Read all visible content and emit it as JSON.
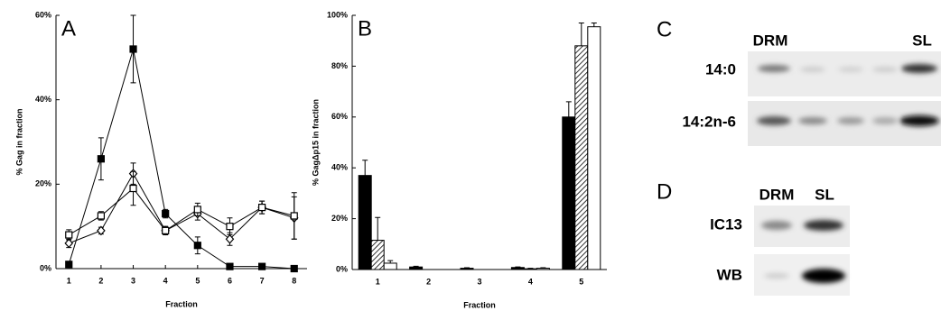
{
  "chart_data": [
    {
      "type": "line",
      "panel_label": "A",
      "y_label": "% Gag in fraction",
      "x_label": "Fraction",
      "x": [
        1,
        2,
        3,
        4,
        5,
        6,
        7,
        8
      ],
      "xlim": [
        0.6,
        8.4
      ],
      "xticks": [
        1,
        2,
        3,
        4,
        5,
        6,
        7,
        8
      ],
      "ylim": [
        0,
        60
      ],
      "yticks": [
        {
          "value": 0,
          "label": "0%"
        },
        {
          "value": 20,
          "label": "20%"
        },
        {
          "value": 40,
          "label": "40%"
        },
        {
          "value": 60,
          "label": "60%"
        }
      ],
      "series": [
        {
          "color": "#000000",
          "marker": "square-filled",
          "values": [
            1,
            26,
            52,
            13,
            5.5,
            0.5,
            0.5,
            0
          ],
          "errors": [
            0.5,
            5,
            8,
            1,
            2,
            0.3,
            0.3,
            0.2
          ]
        },
        {
          "color": "#000000",
          "marker": "diamond-open",
          "values": [
            6,
            9,
            22.5,
            9,
            13,
            7,
            14.5,
            12
          ],
          "errors": [
            1,
            0.8,
            2.5,
            0.8,
            1.5,
            1.5,
            1.5,
            5
          ]
        },
        {
          "color": "#000000",
          "marker": "square-open",
          "values": [
            8,
            12.5,
            19,
            9,
            14,
            10,
            14.5,
            12.5
          ],
          "errors": [
            1.2,
            1,
            4,
            1,
            1.5,
            2,
            1.5,
            5.5
          ]
        }
      ]
    },
    {
      "type": "bar",
      "panel_label": "B",
      "y_label": "% GagΔp15 in fraction",
      "x_label": "Fraction",
      "categories": [
        "1",
        "2",
        "3",
        "4",
        "5"
      ],
      "ylim": [
        0,
        100
      ],
      "yticks": [
        {
          "value": 0,
          "label": "0%"
        },
        {
          "value": 20,
          "label": "20%"
        },
        {
          "value": 40,
          "label": "40%"
        },
        {
          "value": 60,
          "label": "60%"
        },
        {
          "value": 80,
          "label": "80%"
        },
        {
          "value": 100,
          "label": "100%"
        }
      ],
      "series": [
        {
          "color": "#000000",
          "hatched": false,
          "values": [
            37,
            1,
            0.5,
            0.8,
            60
          ],
          "errors": [
            6,
            0.3,
            0.2,
            0.2,
            6
          ]
        },
        {
          "color": "#ffffff",
          "hatched": true,
          "values": [
            11.5,
            0,
            0,
            0.3,
            88
          ],
          "errors": [
            9,
            0,
            0,
            0.2,
            9
          ]
        },
        {
          "color": "#ffffff",
          "hatched": false,
          "values": [
            2.5,
            0,
            0,
            0.5,
            95.5
          ],
          "errors": [
            1,
            0,
            0,
            0.2,
            1.5
          ]
        }
      ]
    }
  ],
  "blots": {
    "c": {
      "panel_label": "C",
      "lanes": [
        "DRM",
        "SL"
      ],
      "rows": [
        "14:0",
        "14:2n-6"
      ]
    },
    "d": {
      "panel_label": "D",
      "lanes": [
        "DRM",
        "SL"
      ],
      "rows": [
        "IC13",
        "WB"
      ]
    }
  }
}
